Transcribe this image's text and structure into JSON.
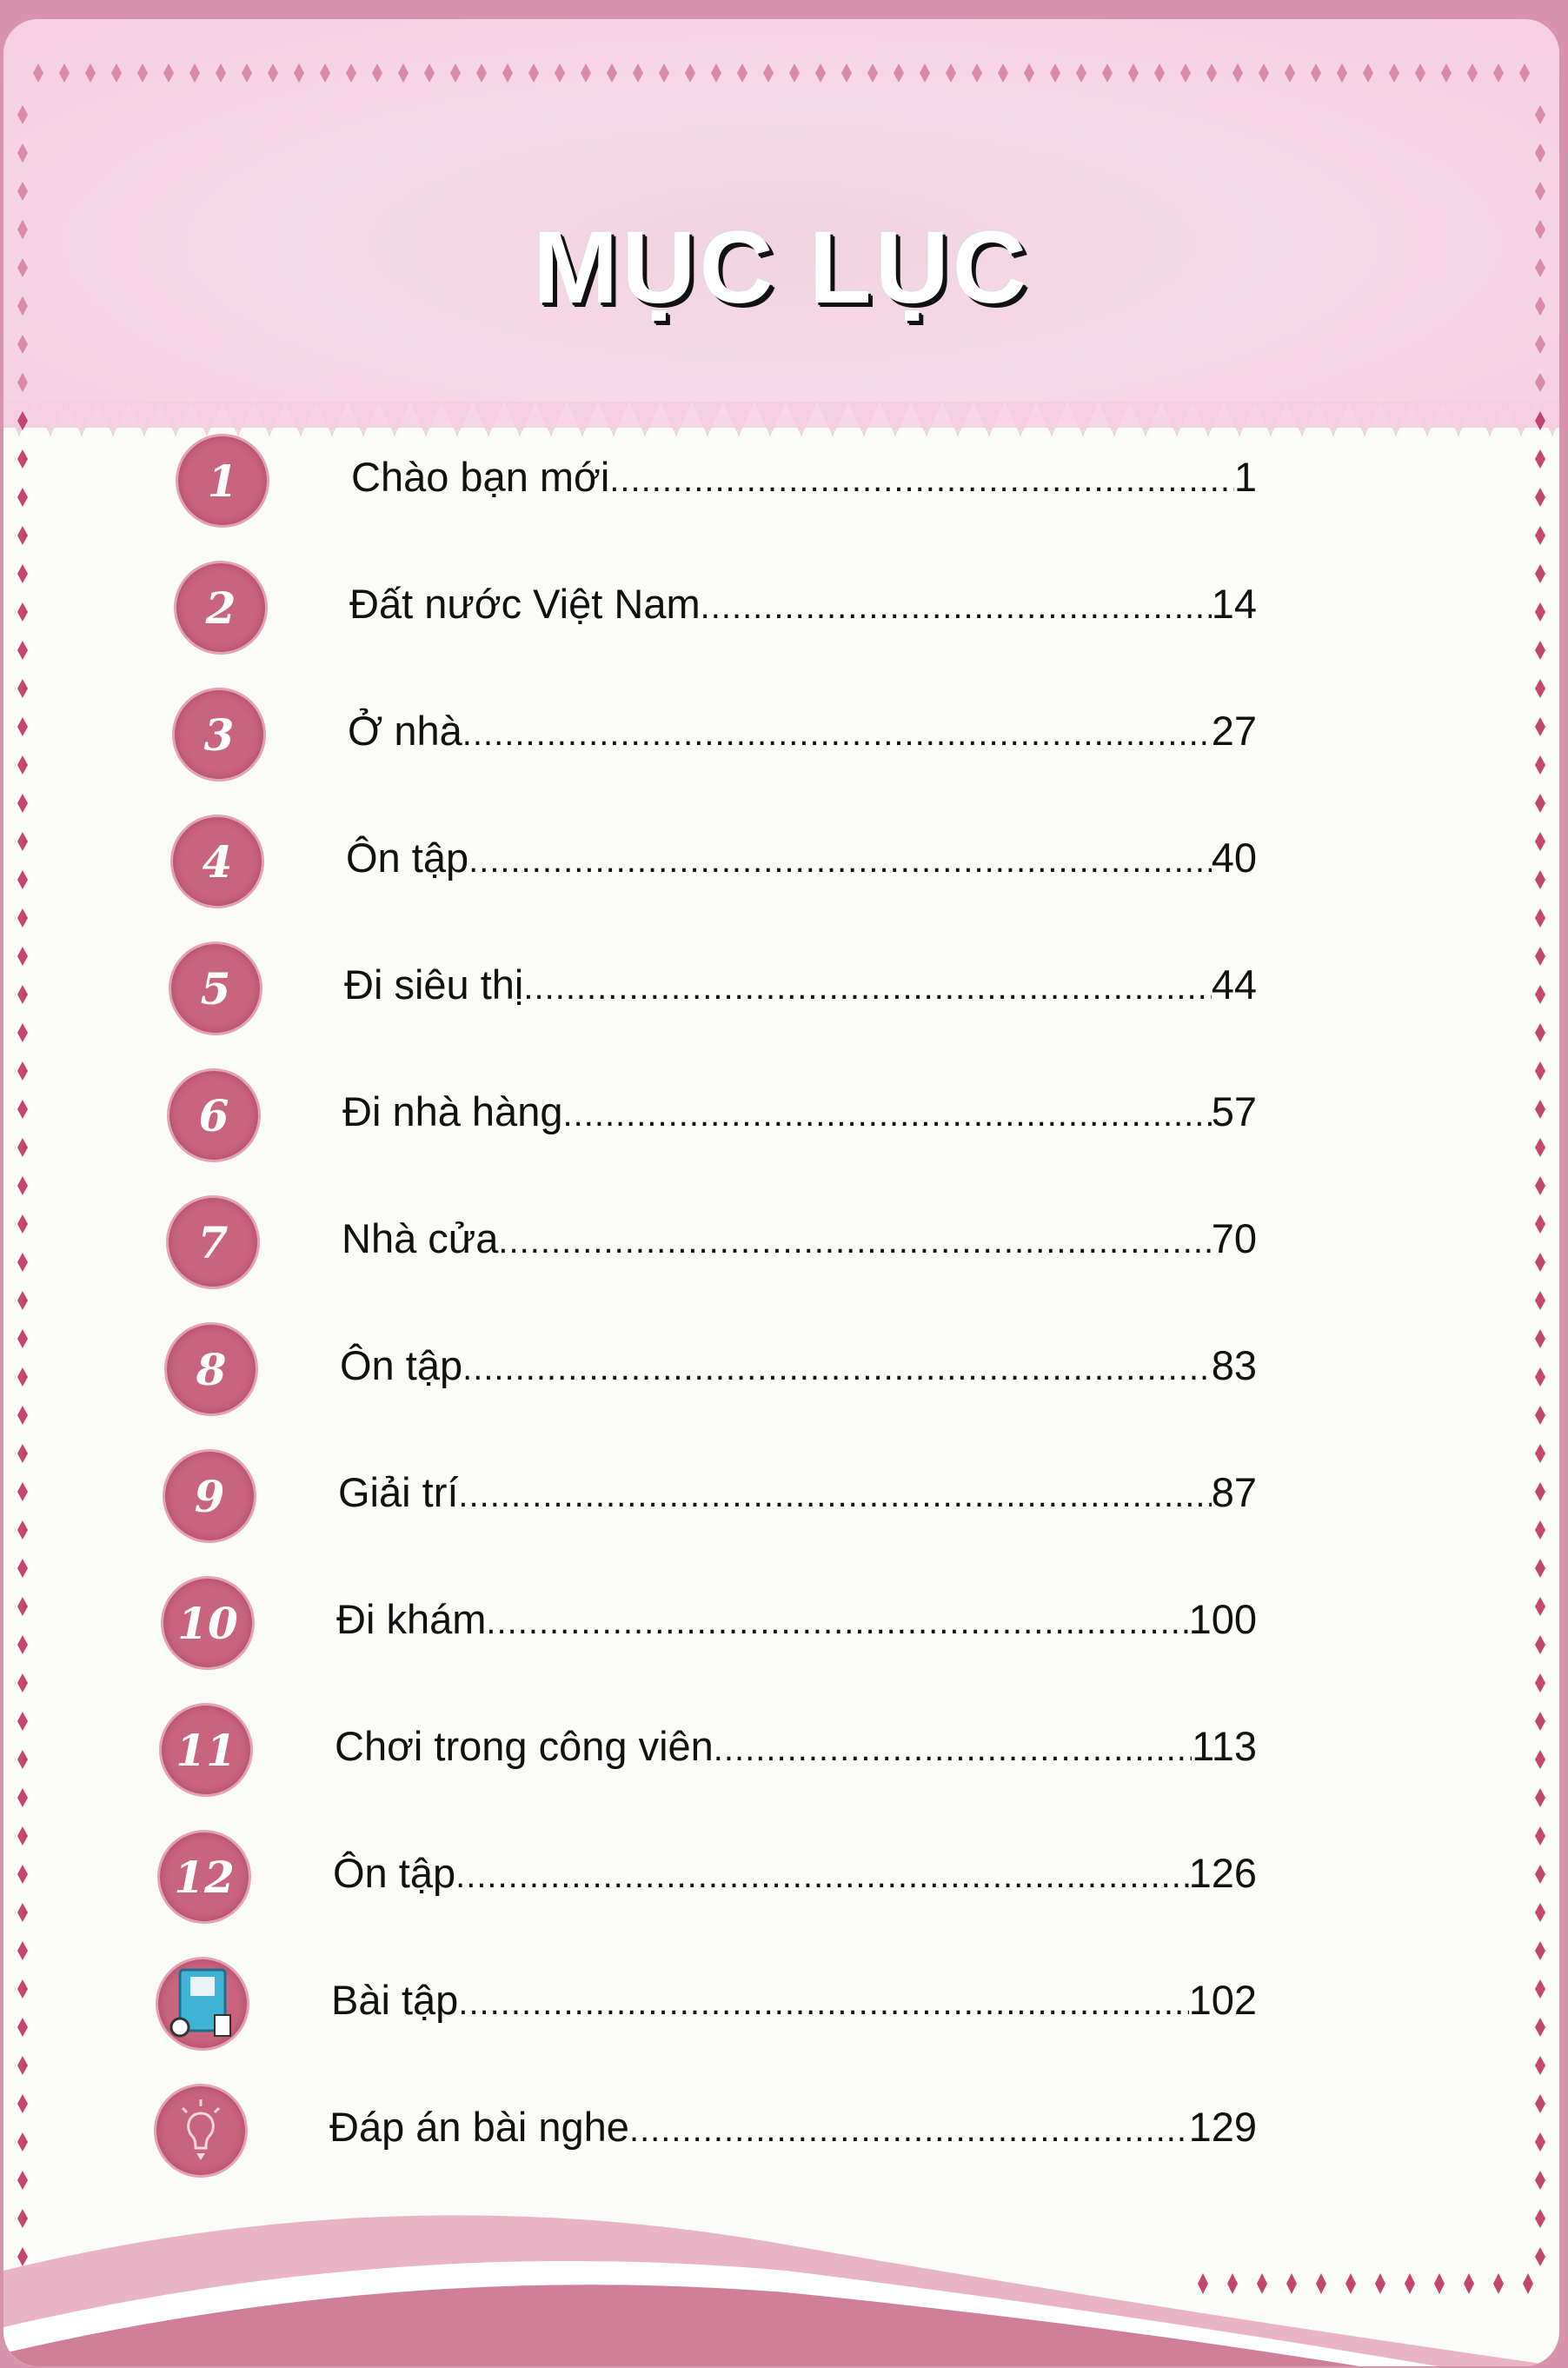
{
  "title": "MỤC LỤC",
  "colors": {
    "badge": "#c9647f",
    "pink_bg": "#d894ad",
    "header_pink": "#f6d9e8",
    "diamond": "#c2466f"
  },
  "entries": [
    {
      "badge": "1",
      "label": "Chào bạn mới",
      "page": "1"
    },
    {
      "badge": "2",
      "label": "Đất nước Việt Nam",
      "page": "14"
    },
    {
      "badge": "3",
      "label": "Ở nhà",
      "page": "27"
    },
    {
      "badge": "4",
      "label": "Ôn tập",
      "page": "40"
    },
    {
      "badge": "5",
      "label": "Đi siêu thị",
      "page": "44"
    },
    {
      "badge": "6",
      "label": "Đi nhà hàng",
      "page": "57"
    },
    {
      "badge": "7",
      "label": "Nhà cửa",
      "page": "70"
    },
    {
      "badge": "8",
      "label": "Ôn tập",
      "page": "83"
    },
    {
      "badge": "9",
      "label": "Giải trí",
      "page": "87"
    },
    {
      "badge": "10",
      "label": "Đi khám",
      "page": "100"
    },
    {
      "badge": "11",
      "label": "Chơi trong công viên",
      "page": "113"
    },
    {
      "badge": "12",
      "label": "Ôn tập",
      "page": "126"
    },
    {
      "icon": "workbook-icon",
      "label": "Bài tập",
      "page": "102"
    },
    {
      "icon": "lightbulb-icon",
      "label": "Đáp án bài nghe",
      "page": "129"
    }
  ]
}
